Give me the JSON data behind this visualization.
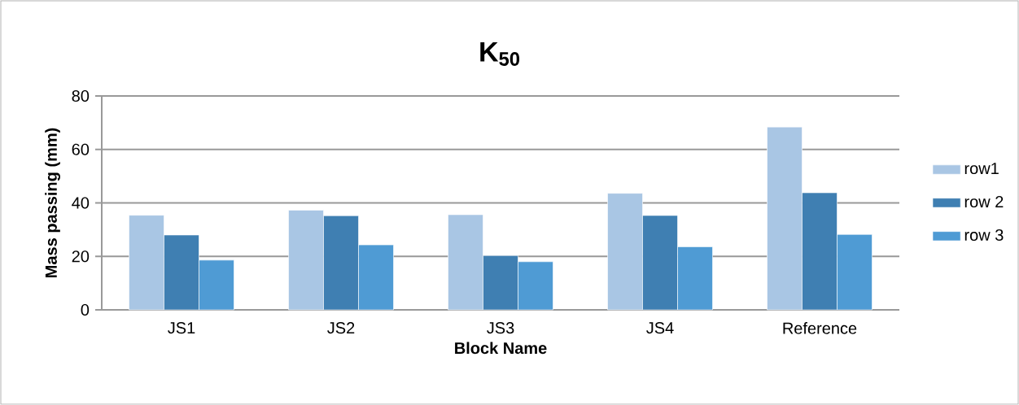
{
  "chart_data": {
    "type": "bar",
    "title": "K$_{50}$",
    "xlabel": "Block Name",
    "ylabel": "Mass passing (mm)",
    "categories": [
      "JS1",
      "JS2",
      "JS3",
      "JS4",
      "Reference"
    ],
    "series": [
      {
        "name": "row1",
        "color": "#a9c6e4",
        "values": [
          35.4,
          37.3,
          35.6,
          43.6,
          68.4
        ]
      },
      {
        "name": "row 2",
        "color": "#3f7fb2",
        "values": [
          28.0,
          35.2,
          20.3,
          35.3,
          43.8
        ]
      },
      {
        "name": "row 3",
        "color": "#4f9bd4",
        "values": [
          18.6,
          24.3,
          18.0,
          23.6,
          28.2
        ]
      }
    ],
    "ylim": [
      0,
      80
    ],
    "yticks": [
      0,
      20,
      40,
      60,
      80
    ],
    "grid": "y",
    "legend": "right"
  }
}
